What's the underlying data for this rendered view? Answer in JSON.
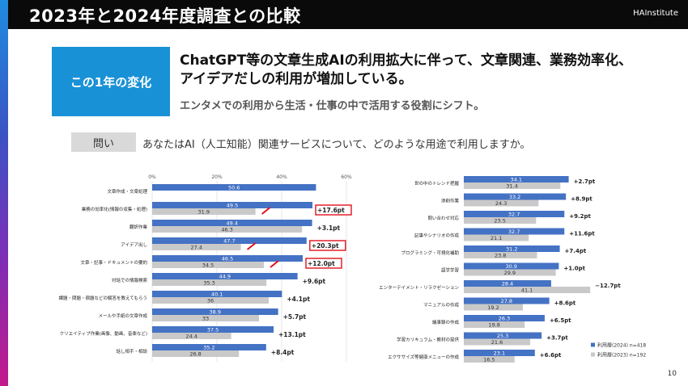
{
  "header": {
    "title": "2023年と2024年度調査との比較",
    "logo": "HAInstitute"
  },
  "summary": {
    "box_label": "この1年の変化",
    "headline_line1": "ChatGPT等の文章生成AIの利用拡大に伴って、文章関連、業務効率化、",
    "headline_line2": "アイデアだしの利用が増加している。",
    "subline": "エンタメでの利用から生活・仕事の中で活用する役割にシフト。"
  },
  "question": {
    "label": "問い",
    "text": "あなたはAI（人工知能）関連サービスについて、どのような用途で利用しますか。"
  },
  "page_number": "10",
  "colors": {
    "series_2024": "#4472c4",
    "series_2023": "#c9c9c9",
    "highlight": "#e0101c",
    "accent": "#1991d6"
  },
  "chart_data": [
    {
      "type": "bar",
      "orientation": "horizontal",
      "x_ticks": [
        "0%",
        "20%",
        "40%",
        "60%"
      ],
      "xlim": [
        0,
        60
      ],
      "categories": [
        "文章作成・文章処理",
        "業務の効率化(情報の収集・処理)",
        "翻訳作業",
        "アイデア出し",
        "文章・記事・ドキュメントの要約",
        "対話での情報検索",
        "課題・問題・宿題などの解答を教えてもらう",
        "メールや手紙の文章作成",
        "クリエイティブ作業(画像、動画、音楽など)",
        "話し相手・相談"
      ],
      "series": [
        {
          "values": [
            50.6,
            49.5,
            49.4,
            47.7,
            46.5,
            44.9,
            40.1,
            38.9,
            37.5,
            35.2
          ],
          "labels": [
            "50.6",
            "49.5",
            "49.4",
            "47.7",
            "46.5",
            "44.9",
            "40.1",
            "38.9",
            "37.5",
            "35.2"
          ]
        },
        {
          "values": [
            null,
            31.9,
            46.3,
            27.4,
            34.5,
            35.3,
            36,
            33,
            24.4,
            26.8
          ],
          "labels": [
            "",
            "31.9",
            "46.3",
            "27.4",
            "34.5",
            "35.3",
            "36",
            "33",
            "24.4",
            "26.8"
          ]
        }
      ],
      "diffs": [
        "",
        "+17.6pt",
        "+3.1pt",
        "+20.3pt",
        "+12.0pt",
        "+9.6pt",
        "+4.1pt",
        "+5.7pt",
        "+13.1pt",
        "+8.4pt"
      ],
      "highlighted": [
        false,
        true,
        false,
        true,
        true,
        false,
        false,
        false,
        false,
        false
      ]
    },
    {
      "type": "bar",
      "orientation": "horizontal",
      "xlim": [
        0,
        50
      ],
      "categories": [
        "世の中のトレンド把握",
        "添削作業",
        "問い合わせ対応",
        "記事やシナリオの作成",
        "プログラミング・可視化補助",
        "語学学習",
        "エンターテイメント・リラクゼーション",
        "マニュアルの作成",
        "議事録の作成",
        "学習カリキュラム・教材の提供",
        "エクササイズ等健康メニューの作成"
      ],
      "series": [
        {
          "name": "利用層(2024) n=418",
          "values": [
            34.1,
            33.2,
            32.7,
            32.7,
            31.2,
            30.9,
            28.4,
            27.8,
            26.3,
            25.3,
            23.1
          ],
          "labels": [
            "34.1",
            "33.2",
            "32.7",
            "32.7",
            "31.2",
            "30.9",
            "28.4",
            "27.8",
            "26.3",
            "25.3",
            "23.1"
          ]
        },
        {
          "name": "利用層(2023) n=192",
          "values": [
            31.4,
            24.3,
            23.5,
            21.1,
            23.8,
            29.9,
            41.1,
            19.2,
            19.8,
            21.6,
            16.5
          ],
          "labels": [
            "31.4",
            "24.3",
            "23.5",
            "21.1",
            "23.8",
            "29.9",
            "41.1",
            "19.2",
            "19.8",
            "21.6",
            "16.5"
          ]
        }
      ],
      "diffs": [
        "+2.7pt",
        "+8.9pt",
        "+9.2pt",
        "+11.6pt",
        "+7.4pt",
        "+1.0pt",
        "−12.7pt",
        "+8.6pt",
        "+6.5pt",
        "+3.7pt",
        "+6.6pt"
      ],
      "legend_position": "bottom-right"
    }
  ]
}
